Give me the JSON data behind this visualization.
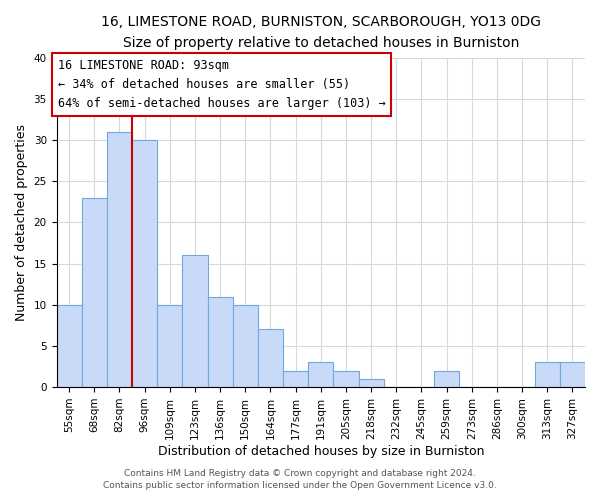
{
  "title": "16, LIMESTONE ROAD, BURNISTON, SCARBOROUGH, YO13 0DG",
  "subtitle": "Size of property relative to detached houses in Burniston",
  "xlabel": "Distribution of detached houses by size in Burniston",
  "ylabel": "Number of detached properties",
  "bin_labels": [
    "55sqm",
    "68sqm",
    "82sqm",
    "96sqm",
    "109sqm",
    "123sqm",
    "136sqm",
    "150sqm",
    "164sqm",
    "177sqm",
    "191sqm",
    "205sqm",
    "218sqm",
    "232sqm",
    "245sqm",
    "259sqm",
    "273sqm",
    "286sqm",
    "300sqm",
    "313sqm",
    "327sqm"
  ],
  "bar_heights": [
    10,
    23,
    31,
    30,
    10,
    16,
    11,
    10,
    7,
    2,
    3,
    2,
    1,
    0,
    0,
    2,
    0,
    0,
    0,
    3,
    3
  ],
  "bar_color": "#c9daf8",
  "bar_edge_color": "#6fa8dc",
  "vline_x_index": 3,
  "vline_color": "#cc0000",
  "annotation_line1": "16 LIMESTONE ROAD: 93sqm",
  "annotation_line2": "← 34% of detached houses are smaller (55)",
  "annotation_line3": "64% of semi-detached houses are larger (103) →",
  "annotation_box_color": "#ffffff",
  "annotation_box_edge_color": "#cc0000",
  "ylim": [
    0,
    40
  ],
  "yticks": [
    0,
    5,
    10,
    15,
    20,
    25,
    30,
    35,
    40
  ],
  "footer_line1": "Contains HM Land Registry data © Crown copyright and database right 2024.",
  "footer_line2": "Contains public sector information licensed under the Open Government Licence v3.0.",
  "bg_color": "#ffffff",
  "grid_color": "#d9d9d9",
  "title_fontsize": 10,
  "subtitle_fontsize": 9.5,
  "axis_label_fontsize": 9,
  "tick_fontsize": 7.5,
  "annotation_fontsize": 8.5,
  "footer_fontsize": 6.5
}
